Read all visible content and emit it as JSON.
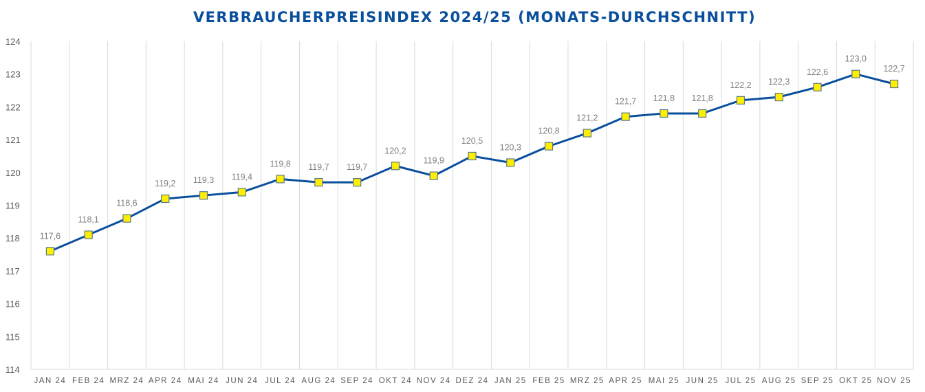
{
  "chart_data": {
    "type": "line",
    "title": "VERBRAUCHERPREISINDEX 2024/25 (MONATS-DURCHSCHNITT)",
    "xlabel": "",
    "ylabel": "",
    "categories": [
      "JAN 24",
      "FEB 24",
      "MRZ 24",
      "APR 24",
      "MAI 24",
      "JUN 24",
      "JUL 24",
      "AUG 24",
      "SEP 24",
      "OKT 24",
      "NOV 24",
      "DEZ 24",
      "JAN 25",
      "FEB 25",
      "MRZ 25",
      "APR 25",
      "MAI 25",
      "JUN 25",
      "JUL 25",
      "AUG 25",
      "SEP 25",
      "OKT 25",
      "NOV 25"
    ],
    "series": [
      {
        "values": [
          117.6,
          118.1,
          118.6,
          119.2,
          119.3,
          119.4,
          119.8,
          119.7,
          119.7,
          120.2,
          119.9,
          120.5,
          120.3,
          120.8,
          121.2,
          121.7,
          121.8,
          121.8,
          122.2,
          122.3,
          122.6,
          123.0,
          122.7
        ],
        "labels": [
          "117,6",
          "118,1",
          "118,6",
          "119,2",
          "119,3",
          "119,4",
          "119,8",
          "119,7",
          "119,7",
          "120,2",
          "119,9",
          "120,5",
          "120,3",
          "120,8",
          "121,2",
          "121,7",
          "121,8",
          "121,8",
          "122,2",
          "122,3",
          "122,6",
          "123,0",
          "122,7"
        ]
      }
    ],
    "ylim": [
      114,
      124
    ],
    "yticks": [
      "114",
      "115",
      "116",
      "117",
      "118",
      "119",
      "120",
      "121",
      "122",
      "123",
      "124"
    ],
    "grid": "vertical",
    "legend": "none",
    "colors": {
      "line": "#0a4f9c",
      "marker_fill": "#ffee00",
      "marker_edge": "#5b7a8a",
      "grid": "#d9d9d9",
      "title": "#0a4f9c"
    }
  }
}
